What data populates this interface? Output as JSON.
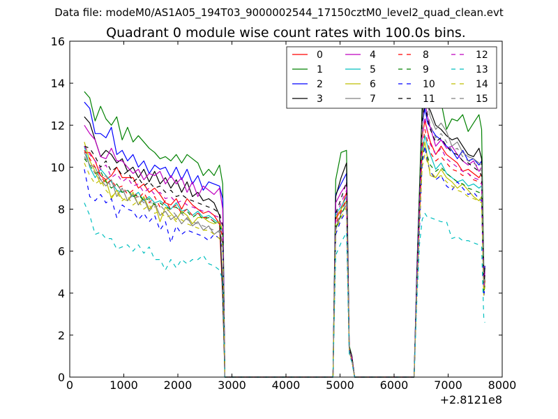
{
  "suptitle": "Data file: modeM0/AS1A05_194T03_9000002544_17150cztM0_level2_quad_clean.evt",
  "chart_data": {
    "type": "line",
    "title": "Quadrant 0 module wise count rates with 100.0s bins.",
    "xlabel": "",
    "ylabel": "",
    "x_offset_label": "+2.8121e8",
    "xlim": [
      0,
      8000
    ],
    "ylim": [
      0,
      16
    ],
    "xticks": [
      0,
      1000,
      2000,
      3000,
      4000,
      5000,
      6000,
      7000,
      8000
    ],
    "yticks": [
      0,
      2,
      4,
      6,
      8,
      10,
      12,
      14,
      16
    ],
    "grid": false,
    "legend_position": "top-right",
    "legend_columns": 4,
    "x": [
      270,
      370,
      470,
      570,
      670,
      770,
      870,
      970,
      1070,
      1170,
      1270,
      1370,
      1470,
      1570,
      1670,
      1770,
      1870,
      1970,
      2070,
      2170,
      2270,
      2370,
      2470,
      2570,
      2670,
      2770,
      2830,
      2870,
      2900,
      4870,
      4920,
      5020,
      5120,
      5170,
      5220,
      5270,
      5320,
      5370,
      6370,
      6420,
      6470,
      6520,
      6570,
      6620,
      6670,
      6770,
      6870,
      6970,
      7070,
      7170,
      7270,
      7370,
      7470,
      7570,
      7620,
      7660,
      7680
    ],
    "series": [
      {
        "name": "0",
        "color": "#ff0000",
        "dash": "solid",
        "values": [
          10.7,
          10.7,
          10.3,
          9.6,
          9.4,
          9.6,
          10.0,
          9.5,
          9.5,
          9.5,
          9.0,
          9.2,
          8.8,
          9.0,
          8.7,
          8.3,
          8.2,
          8.5,
          8.0,
          8.5,
          8.2,
          8.0,
          7.8,
          7.9,
          7.7,
          7.3,
          3.8,
          0.0,
          0.0,
          0.0,
          7.5,
          8.0,
          8.8,
          1.4,
          0.8,
          0.0,
          0.0,
          0.0,
          0.0,
          4.5,
          8.0,
          11.5,
          12.2,
          11.7,
          11.2,
          10.6,
          11.0,
          10.6,
          10.4,
          10.2,
          9.8,
          9.9,
          9.7,
          9.5,
          9.7,
          4.3,
          5.3
        ]
      },
      {
        "name": "1",
        "color": "#008000",
        "dash": "solid",
        "values": [
          13.6,
          13.3,
          12.2,
          12.9,
          12.3,
          12.0,
          12.4,
          11.3,
          11.9,
          11.2,
          11.5,
          11.2,
          10.9,
          10.7,
          10.4,
          10.5,
          10.3,
          10.6,
          10.2,
          10.6,
          10.4,
          10.2,
          9.6,
          9.9,
          9.6,
          10.1,
          9.2,
          0.0,
          0.0,
          0.0,
          9.4,
          10.7,
          10.8,
          1.5,
          1.0,
          0.0,
          0.0,
          0.0,
          0.0,
          5.0,
          9.0,
          13.0,
          14.5,
          13.5,
          13.2,
          12.9,
          13.1,
          11.8,
          12.3,
          12.2,
          12.5,
          11.7,
          12.1,
          12.5,
          11.8,
          5.3,
          4.5
        ]
      },
      {
        "name": "2",
        "color": "#0000ff",
        "dash": "solid",
        "values": [
          13.1,
          12.8,
          11.6,
          11.6,
          11.4,
          11.9,
          10.6,
          10.8,
          10.3,
          10.6,
          10.0,
          10.3,
          9.7,
          10.1,
          9.9,
          10.0,
          9.5,
          10.0,
          9.4,
          9.9,
          9.2,
          9.6,
          8.9,
          9.3,
          9.2,
          9.1,
          8.5,
          0.0,
          0.0,
          0.0,
          8.7,
          9.2,
          9.7,
          1.4,
          0.9,
          0.0,
          0.0,
          0.0,
          0.0,
          4.8,
          8.5,
          12.0,
          12.8,
          12.1,
          11.9,
          11.5,
          11.3,
          11.0,
          10.8,
          10.4,
          10.8,
          10.3,
          10.4,
          10.1,
          10.3,
          4.6,
          5.3
        ]
      },
      {
        "name": "3",
        "color": "#000000",
        "dash": "solid",
        "values": [
          12.4,
          12.1,
          11.3,
          10.5,
          10.8,
          10.6,
          10.2,
          10.4,
          9.8,
          10.0,
          9.5,
          9.9,
          9.3,
          9.8,
          9.2,
          9.5,
          9.0,
          9.4,
          8.8,
          9.3,
          8.6,
          8.8,
          8.4,
          8.5,
          8.3,
          7.7,
          4.0,
          0.0,
          0.0,
          0.0,
          8.6,
          9.5,
          10.2,
          1.4,
          1.0,
          0.0,
          0.0,
          0.0,
          0.0,
          4.5,
          8.3,
          12.7,
          13.5,
          12.9,
          12.7,
          12.0,
          11.8,
          11.5,
          11.3,
          11.4,
          11.0,
          10.6,
          10.5,
          10.9,
          10.4,
          4.7,
          5.2
        ]
      },
      {
        "name": "4",
        "color": "#bf00bf",
        "dash": "solid",
        "values": [
          12.0,
          11.6,
          11.3,
          10.5,
          10.4,
          10.9,
          10.3,
          10.3,
          10.0,
          9.7,
          9.9,
          9.4,
          9.7,
          9.6,
          9.8,
          9.2,
          9.6,
          9.2,
          9.5,
          8.8,
          9.3,
          8.6,
          9.1,
          8.9,
          8.7,
          9.0,
          8.0,
          0.0,
          0.0,
          0.0,
          8.3,
          8.8,
          9.2,
          1.4,
          0.9,
          0.0,
          0.0,
          0.0,
          0.0,
          4.5,
          8.1,
          12.1,
          13.2,
          12.4,
          11.9,
          11.0,
          11.3,
          10.9,
          11.0,
          10.6,
          10.3,
          10.1,
          10.3,
          9.8,
          10.0,
          4.3,
          5.0
        ]
      },
      {
        "name": "5",
        "color": "#00bfbf",
        "dash": "solid",
        "values": [
          11.0,
          10.0,
          9.5,
          9.9,
          9.6,
          9.3,
          8.9,
          8.8,
          8.9,
          8.6,
          8.8,
          8.4,
          8.6,
          8.3,
          8.4,
          8.2,
          8.0,
          8.3,
          7.9,
          8.0,
          7.7,
          7.9,
          7.6,
          7.7,
          7.5,
          7.3,
          6.9,
          0.0,
          0.0,
          0.0,
          7.8,
          8.1,
          8.6,
          1.3,
          0.8,
          0.0,
          0.0,
          0.0,
          0.0,
          4.3,
          7.8,
          10.8,
          11.5,
          11.0,
          10.6,
          9.9,
          10.2,
          9.7,
          9.5,
          9.3,
          9.4,
          9.1,
          9.2,
          9.0,
          9.1,
          4.2,
          4.5
        ]
      },
      {
        "name": "6",
        "color": "#bfbf00",
        "dash": "solid",
        "values": [
          11.2,
          10.3,
          9.8,
          9.2,
          9.4,
          8.5,
          8.9,
          8.5,
          8.4,
          8.8,
          8.2,
          8.6,
          8.0,
          8.3,
          7.4,
          8.1,
          7.8,
          7.5,
          7.9,
          7.7,
          7.3,
          7.6,
          7.6,
          7.4,
          7.3,
          7.4,
          7.0,
          0.0,
          0.0,
          0.0,
          7.6,
          8.0,
          8.4,
          1.3,
          0.8,
          0.0,
          0.0,
          0.0,
          0.0,
          4.2,
          7.6,
          10.6,
          11.2,
          10.4,
          9.6,
          9.5,
          9.9,
          9.5,
          9.3,
          9.0,
          9.2,
          8.9,
          8.6,
          8.4,
          8.6,
          4.0,
          4.5
        ]
      },
      {
        "name": "7",
        "color": "#808080",
        "dash": "solid",
        "values": [
          10.7,
          10.1,
          10.0,
          9.4,
          9.1,
          9.4,
          8.6,
          9.0,
          8.4,
          8.7,
          8.2,
          8.5,
          7.9,
          8.3,
          7.7,
          7.9,
          7.5,
          7.7,
          7.3,
          7.6,
          7.2,
          7.4,
          7.0,
          7.2,
          6.8,
          7.0,
          6.4,
          0.0,
          0.0,
          0.0,
          7.0,
          7.8,
          8.2,
          1.2,
          0.8,
          0.0,
          0.0,
          0.0,
          0.0,
          4.1,
          7.4,
          12.0,
          14.2,
          13.0,
          12.4,
          11.8,
          12.1,
          11.7,
          11.0,
          11.2,
          10.7,
          10.5,
          10.4,
          10.2,
          10.1,
          4.5,
          4.8
        ]
      },
      {
        "name": "8",
        "color": "#ff0000",
        "dash": "dashed",
        "values": [
          10.8,
          10.4,
          10.0,
          9.6,
          9.2,
          9.4,
          9.0,
          9.1,
          8.7,
          8.9,
          8.5,
          8.8,
          8.3,
          8.6,
          8.1,
          8.4,
          8.0,
          8.2,
          7.8,
          8.0,
          7.7,
          7.8,
          7.6,
          7.6,
          7.4,
          7.3,
          6.6,
          0.0,
          0.0,
          0.0,
          7.3,
          7.9,
          8.5,
          1.3,
          0.8,
          0.0,
          0.0,
          0.0,
          0.0,
          4.2,
          7.7,
          10.9,
          11.8,
          11.2,
          10.7,
          10.3,
          10.5,
          10.2,
          9.9,
          9.8,
          9.6,
          9.7,
          9.4,
          9.3,
          9.2,
          4.1,
          4.6
        ]
      },
      {
        "name": "9",
        "color": "#008000",
        "dash": "dashed",
        "values": [
          10.4,
          10.1,
          9.7,
          9.8,
          9.3,
          9.0,
          9.2,
          8.8,
          8.9,
          8.6,
          8.7,
          8.4,
          8.5,
          8.2,
          8.3,
          8.1,
          8.0,
          8.1,
          7.8,
          7.9,
          7.6,
          7.8,
          7.5,
          7.6,
          7.4,
          7.2,
          6.9,
          0.0,
          0.0,
          0.0,
          7.1,
          7.7,
          8.3,
          1.3,
          0.8,
          0.0,
          0.0,
          0.0,
          0.0,
          4.1,
          7.5,
          10.4,
          11.0,
          10.5,
          10.1,
          9.8,
          10.0,
          9.7,
          9.5,
          9.3,
          9.2,
          9.0,
          8.9,
          8.8,
          8.7,
          4.0,
          4.4
        ]
      },
      {
        "name": "10",
        "color": "#0000ff",
        "dash": "dashed",
        "values": [
          9.9,
          8.6,
          8.4,
          8.7,
          8.3,
          8.5,
          7.6,
          8.2,
          8.0,
          7.9,
          7.5,
          7.8,
          7.4,
          7.7,
          7.0,
          7.4,
          6.4,
          7.2,
          6.8,
          7.0,
          6.9,
          6.8,
          6.7,
          6.5,
          6.8,
          6.6,
          6.1,
          0.0,
          0.0,
          0.0,
          6.8,
          7.5,
          7.9,
          1.2,
          0.8,
          0.0,
          0.0,
          0.0,
          0.0,
          3.8,
          7.0,
          10.2,
          11.0,
          10.2,
          9.8,
          9.4,
          9.6,
          9.1,
          8.9,
          9.3,
          9.0,
          8.7,
          8.8,
          8.5,
          8.4,
          3.8,
          4.3
        ]
      },
      {
        "name": "11",
        "color": "#000000",
        "dash": "dashed",
        "values": [
          11.0,
          10.9,
          10.5,
          10.0,
          10.3,
          9.8,
          10.0,
          9.6,
          9.8,
          9.3,
          9.5,
          9.1,
          9.3,
          9.0,
          9.1,
          8.8,
          8.9,
          8.6,
          8.7,
          8.5,
          8.4,
          8.3,
          8.2,
          8.1,
          8.0,
          7.8,
          7.2,
          0.0,
          0.0,
          0.0,
          7.8,
          8.5,
          9.3,
          1.4,
          0.9,
          0.0,
          0.0,
          0.0,
          0.0,
          4.6,
          8.6,
          12.2,
          13.0,
          12.3,
          11.8,
          11.2,
          11.4,
          11.0,
          10.7,
          10.6,
          10.3,
          10.2,
          10.0,
          9.8,
          9.6,
          4.4,
          4.9
        ]
      },
      {
        "name": "12",
        "color": "#bf00bf",
        "dash": "dashed",
        "values": [
          11.0,
          10.6,
          10.3,
          9.9,
          10.1,
          9.5,
          9.7,
          9.3,
          9.5,
          9.1,
          9.2,
          8.8,
          9.0,
          8.7,
          8.8,
          8.5,
          8.6,
          8.3,
          8.4,
          8.2,
          8.1,
          8.0,
          7.9,
          7.9,
          7.7,
          7.6,
          7.0,
          0.0,
          0.0,
          0.0,
          7.6,
          8.3,
          8.9,
          1.3,
          0.9,
          0.0,
          0.0,
          0.0,
          0.0,
          4.4,
          8.2,
          11.4,
          12.4,
          11.6,
          11.1,
          10.6,
          10.9,
          10.4,
          10.2,
          10.0,
          9.8,
          9.7,
          9.5,
          9.4,
          9.2,
          4.2,
          4.7
        ]
      },
      {
        "name": "13",
        "color": "#00bfbf",
        "dash": "dashed",
        "values": [
          8.3,
          7.7,
          6.8,
          6.9,
          6.6,
          6.6,
          6.1,
          6.2,
          6.3,
          6.0,
          6.3,
          5.9,
          6.2,
          5.6,
          5.6,
          5.1,
          5.6,
          5.2,
          5.6,
          5.4,
          5.6,
          5.6,
          5.8,
          5.4,
          5.3,
          5.1,
          4.6,
          0.0,
          0.0,
          0.0,
          5.8,
          6.4,
          6.9,
          1.1,
          0.7,
          0.0,
          0.0,
          0.0,
          0.0,
          3.5,
          6.3,
          7.5,
          7.8,
          7.6,
          7.6,
          7.5,
          7.4,
          7.4,
          6.6,
          6.7,
          6.5,
          6.5,
          6.4,
          6.3,
          6.2,
          2.8,
          2.6
        ]
      },
      {
        "name": "14",
        "color": "#bfbf00",
        "dash": "dashed",
        "values": [
          10.2,
          9.6,
          9.2,
          9.4,
          8.9,
          8.6,
          8.8,
          8.4,
          8.6,
          8.2,
          8.4,
          8.0,
          8.2,
          7.8,
          7.9,
          7.6,
          7.7,
          7.4,
          7.5,
          7.3,
          7.2,
          7.1,
          7.0,
          7.0,
          6.8,
          6.6,
          6.2,
          0.0,
          0.0,
          0.0,
          7.0,
          7.6,
          8.1,
          1.2,
          0.8,
          0.0,
          0.0,
          0.0,
          0.0,
          3.9,
          7.3,
          10.0,
          10.6,
          10.2,
          9.8,
          9.5,
          9.6,
          9.3,
          9.1,
          8.9,
          8.8,
          8.6,
          8.5,
          8.4,
          8.3,
          3.9,
          4.3
        ]
      },
      {
        "name": "15",
        "color": "#808080",
        "dash": "dashed",
        "values": [
          10.5,
          10.1,
          9.7,
          9.4,
          9.6,
          9.0,
          9.2,
          8.8,
          8.9,
          8.5,
          8.6,
          8.3,
          8.4,
          8.1,
          8.2,
          7.9,
          8.0,
          7.7,
          7.8,
          7.5,
          7.4,
          7.3,
          7.2,
          7.1,
          7.0,
          6.9,
          6.3,
          0.0,
          0.0,
          0.0,
          7.2,
          7.8,
          8.4,
          1.3,
          0.8,
          0.0,
          0.0,
          0.0,
          0.0,
          4.2,
          7.7,
          11.8,
          13.5,
          12.6,
          12.0,
          11.4,
          11.6,
          11.2,
          10.8,
          10.9,
          10.5,
          10.3,
          10.2,
          10.0,
          9.8,
          4.4,
          4.8
        ]
      }
    ]
  }
}
